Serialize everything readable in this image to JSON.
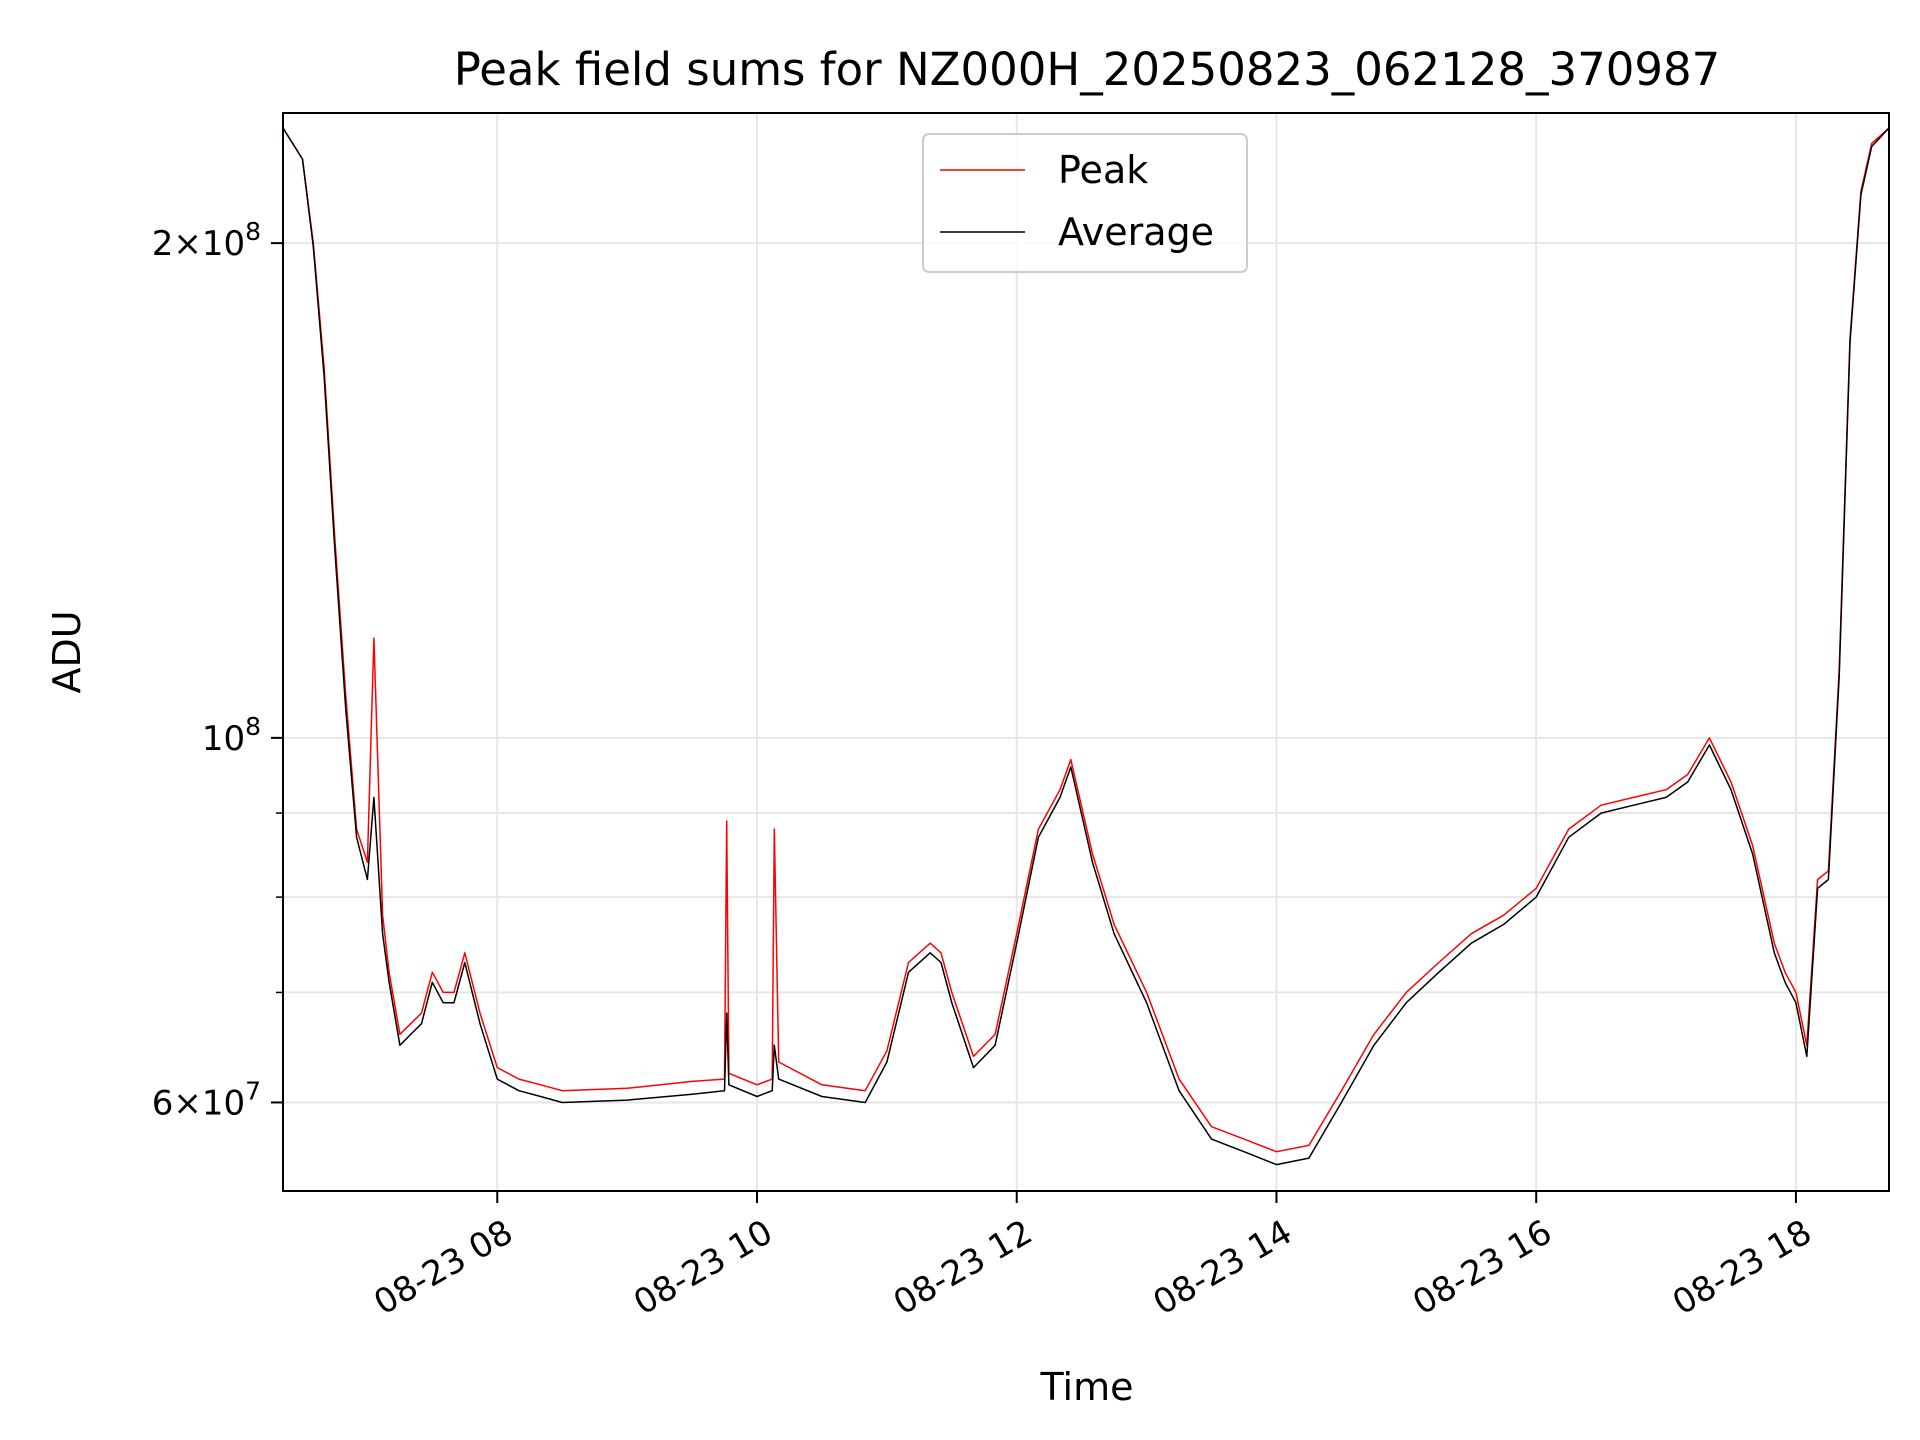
{
  "chart_data": {
    "type": "line",
    "title": "Peak field sums for NZ000H_20250823_062128_370987",
    "xlabel": "Time",
    "ylabel": "ADU",
    "y_scale": "log",
    "xlim": [
      "2025-08-23 06:21",
      "2025-08-23 18:43"
    ],
    "ylim": [
      53000000,
      240000000
    ],
    "grid": true,
    "legend_position": "top-center",
    "x_ticks": [
      {
        "value": "2025-08-23 08:00",
        "label": "08-23 08"
      },
      {
        "value": "2025-08-23 10:00",
        "label": "08-23 10"
      },
      {
        "value": "2025-08-23 12:00",
        "label": "08-23 12"
      },
      {
        "value": "2025-08-23 14:00",
        "label": "08-23 14"
      },
      {
        "value": "2025-08-23 16:00",
        "label": "08-23 16"
      },
      {
        "value": "2025-08-23 18:00",
        "label": "08-23 18"
      }
    ],
    "y_ticks_major": [
      {
        "value": 60000000,
        "base": "6",
        "exp": "7"
      },
      {
        "value": 100000000,
        "base": "",
        "exp": "8"
      },
      {
        "value": 200000000,
        "base": "2",
        "exp": "8"
      }
    ],
    "y_ticks_minor": [
      70000000,
      80000000,
      90000000
    ],
    "series": [
      {
        "name": "Peak",
        "color": "#ff0000",
        "x": [
          "2025-08-23 06:21",
          "2025-08-23 06:30",
          "2025-08-23 06:35",
          "2025-08-23 06:40",
          "2025-08-23 06:45",
          "2025-08-23 06:50",
          "2025-08-23 06:55",
          "2025-08-23 07:00",
          "2025-08-23 07:03",
          "2025-08-23 07:07",
          "2025-08-23 07:10",
          "2025-08-23 07:15",
          "2025-08-23 07:20",
          "2025-08-23 07:25",
          "2025-08-23 07:30",
          "2025-08-23 07:35",
          "2025-08-23 07:40",
          "2025-08-23 07:45",
          "2025-08-23 07:52",
          "2025-08-23 08:00",
          "2025-08-23 08:10",
          "2025-08-23 08:20",
          "2025-08-23 08:30",
          "2025-08-23 09:00",
          "2025-08-23 09:30",
          "2025-08-23 09:45",
          "2025-08-23 09:46",
          "2025-08-23 09:47",
          "2025-08-23 10:00",
          "2025-08-23 10:07",
          "2025-08-23 10:08",
          "2025-08-23 10:10",
          "2025-08-23 10:30",
          "2025-08-23 10:50",
          "2025-08-23 11:00",
          "2025-08-23 11:10",
          "2025-08-23 11:20",
          "2025-08-23 11:25",
          "2025-08-23 11:30",
          "2025-08-23 11:40",
          "2025-08-23 11:50",
          "2025-08-23 12:00",
          "2025-08-23 12:10",
          "2025-08-23 12:20",
          "2025-08-23 12:25",
          "2025-08-23 12:35",
          "2025-08-23 12:45",
          "2025-08-23 13:00",
          "2025-08-23 13:15",
          "2025-08-23 13:30",
          "2025-08-23 13:45",
          "2025-08-23 14:00",
          "2025-08-23 14:15",
          "2025-08-23 14:30",
          "2025-08-23 14:45",
          "2025-08-23 15:00",
          "2025-08-23 15:15",
          "2025-08-23 15:30",
          "2025-08-23 15:45",
          "2025-08-23 16:00",
          "2025-08-23 16:15",
          "2025-08-23 16:30",
          "2025-08-23 16:45",
          "2025-08-23 17:00",
          "2025-08-23 17:10",
          "2025-08-23 17:20",
          "2025-08-23 17:30",
          "2025-08-23 17:40",
          "2025-08-23 17:50",
          "2025-08-23 17:55",
          "2025-08-23 18:00",
          "2025-08-23 18:05",
          "2025-08-23 18:10",
          "2025-08-23 18:15",
          "2025-08-23 18:20",
          "2025-08-23 18:25",
          "2025-08-23 18:30",
          "2025-08-23 18:35",
          "2025-08-23 18:43"
        ],
        "values": [
          235000000,
          225000000,
          200000000,
          168000000,
          132000000,
          106000000,
          88000000,
          84000000,
          115000000,
          78000000,
          72000000,
          66000000,
          67000000,
          68000000,
          72000000,
          70000000,
          70000000,
          74000000,
          68000000,
          63000000,
          62000000,
          61500000,
          61000000,
          61200000,
          61800000,
          62000000,
          89000000,
          62500000,
          61500000,
          62000000,
          88000000,
          63500000,
          61500000,
          61000000,
          64500000,
          73000000,
          75000000,
          74000000,
          70000000,
          64000000,
          66000000,
          76000000,
          88000000,
          93000000,
          97000000,
          85000000,
          77000000,
          70000000,
          62000000,
          58000000,
          57000000,
          56000000,
          56500000,
          61000000,
          66000000,
          70000000,
          73000000,
          76000000,
          78000000,
          81000000,
          88000000,
          91000000,
          92000000,
          93000000,
          95000000,
          100000000,
          94000000,
          86000000,
          75000000,
          72000000,
          70000000,
          65000000,
          82000000,
          83000000,
          110000000,
          175000000,
          215000000,
          230000000,
          235000000
        ]
      },
      {
        "name": "Average",
        "color": "#000000",
        "x": [
          "2025-08-23 06:21",
          "2025-08-23 06:30",
          "2025-08-23 06:35",
          "2025-08-23 06:40",
          "2025-08-23 06:45",
          "2025-08-23 06:50",
          "2025-08-23 06:55",
          "2025-08-23 07:00",
          "2025-08-23 07:03",
          "2025-08-23 07:07",
          "2025-08-23 07:10",
          "2025-08-23 07:15",
          "2025-08-23 07:20",
          "2025-08-23 07:25",
          "2025-08-23 07:30",
          "2025-08-23 07:35",
          "2025-08-23 07:40",
          "2025-08-23 07:45",
          "2025-08-23 07:52",
          "2025-08-23 08:00",
          "2025-08-23 08:10",
          "2025-08-23 08:20",
          "2025-08-23 08:30",
          "2025-08-23 09:00",
          "2025-08-23 09:30",
          "2025-08-23 09:45",
          "2025-08-23 09:46",
          "2025-08-23 09:47",
          "2025-08-23 10:00",
          "2025-08-23 10:07",
          "2025-08-23 10:08",
          "2025-08-23 10:10",
          "2025-08-23 10:30",
          "2025-08-23 10:50",
          "2025-08-23 11:00",
          "2025-08-23 11:10",
          "2025-08-23 11:20",
          "2025-08-23 11:25",
          "2025-08-23 11:30",
          "2025-08-23 11:40",
          "2025-08-23 11:50",
          "2025-08-23 12:00",
          "2025-08-23 12:10",
          "2025-08-23 12:20",
          "2025-08-23 12:25",
          "2025-08-23 12:35",
          "2025-08-23 12:45",
          "2025-08-23 13:00",
          "2025-08-23 13:15",
          "2025-08-23 13:30",
          "2025-08-23 13:45",
          "2025-08-23 14:00",
          "2025-08-23 14:15",
          "2025-08-23 14:30",
          "2025-08-23 14:45",
          "2025-08-23 15:00",
          "2025-08-23 15:15",
          "2025-08-23 15:30",
          "2025-08-23 15:45",
          "2025-08-23 16:00",
          "2025-08-23 16:15",
          "2025-08-23 16:30",
          "2025-08-23 16:45",
          "2025-08-23 17:00",
          "2025-08-23 17:10",
          "2025-08-23 17:20",
          "2025-08-23 17:30",
          "2025-08-23 17:40",
          "2025-08-23 17:50",
          "2025-08-23 17:55",
          "2025-08-23 18:00",
          "2025-08-23 18:05",
          "2025-08-23 18:10",
          "2025-08-23 18:15",
          "2025-08-23 18:20",
          "2025-08-23 18:25",
          "2025-08-23 18:30",
          "2025-08-23 18:35",
          "2025-08-23 18:43"
        ],
        "values": [
          235000000,
          225000000,
          199000000,
          166000000,
          130000000,
          104000000,
          87000000,
          82000000,
          92000000,
          76000000,
          71000000,
          65000000,
          66000000,
          67000000,
          71000000,
          69000000,
          69000000,
          73000000,
          67000000,
          62000000,
          61000000,
          60500000,
          60000000,
          60200000,
          60700000,
          61000000,
          68000000,
          61500000,
          60500000,
          61000000,
          65000000,
          62000000,
          60500000,
          60000000,
          63500000,
          72000000,
          74000000,
          73000000,
          69000000,
          63000000,
          65000000,
          75000000,
          87000000,
          92000000,
          96000000,
          84000000,
          76000000,
          69000000,
          61000000,
          57000000,
          56000000,
          55000000,
          55500000,
          60000000,
          65000000,
          69000000,
          72000000,
          75000000,
          77000000,
          80000000,
          87000000,
          90000000,
          91000000,
          92000000,
          94000000,
          99000000,
          93000000,
          85000000,
          74000000,
          71000000,
          69000000,
          64000000,
          81000000,
          82000000,
          109000000,
          174000000,
          214000000,
          229000000,
          235000000
        ]
      }
    ]
  }
}
